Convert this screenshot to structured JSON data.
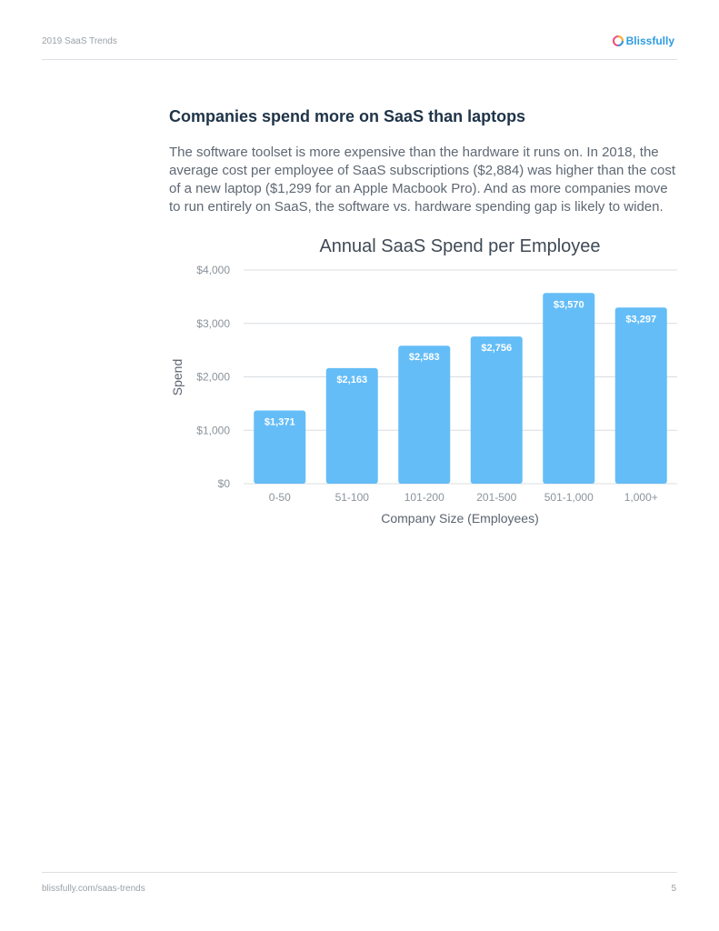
{
  "header": {
    "doc_title": "2019 SaaS Trends",
    "logo_text": "Blissfully"
  },
  "section": {
    "title": "Companies spend more on SaaS than laptops",
    "paragraph": "The software toolset is more expensive than the hardware it runs on. In 2018, the average cost per employee of SaaS subscriptions ($2,884) was higher than the cost of a new laptop ($1,299 for an Apple Macbook Pro). And as more companies move to run entirely on SaaS, the software vs. hardware spending gap is likely to widen."
  },
  "chart_data": {
    "type": "bar",
    "title": "Annual SaaS Spend per Employee",
    "xlabel": "Company Size (Employees)",
    "ylabel": "Spend",
    "categories": [
      "0-50",
      "51-100",
      "101-200",
      "201-500",
      "501-1,000",
      "1,000+"
    ],
    "values": [
      1371,
      2163,
      2583,
      2756,
      3570,
      3297
    ],
    "value_labels": [
      "$1,371",
      "$2,163",
      "$2,583",
      "$2,756",
      "$3,570",
      "$3,297"
    ],
    "ylim": [
      0,
      4000
    ],
    "yticks": [
      0,
      1000,
      2000,
      3000,
      4000
    ],
    "ytick_labels": [
      "$0",
      "$1,000",
      "$2,000",
      "$3,000",
      "$4,000"
    ],
    "grid": true,
    "bar_color": "#64bdf7",
    "value_label_color": "#ffffff"
  },
  "footer": {
    "url": "blissfully.com/saas-trends",
    "page_number": "5"
  }
}
